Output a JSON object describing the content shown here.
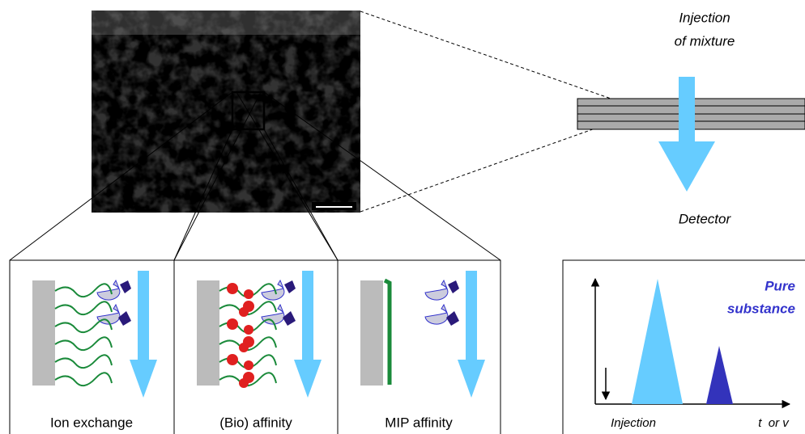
{
  "header": {
    "injection_label": [
      "Injection",
      "of mixture"
    ],
    "detector_label": "Detector"
  },
  "panels": [
    {
      "label": "Ion exchange"
    },
    {
      "label": "(Bio) affinity"
    },
    {
      "label": "MIP affinity"
    }
  ],
  "chromatogram": {
    "peak_label": [
      "Pure",
      "substance"
    ],
    "x_start_label": "Injection",
    "x_end_label": "t  or v"
  }
}
